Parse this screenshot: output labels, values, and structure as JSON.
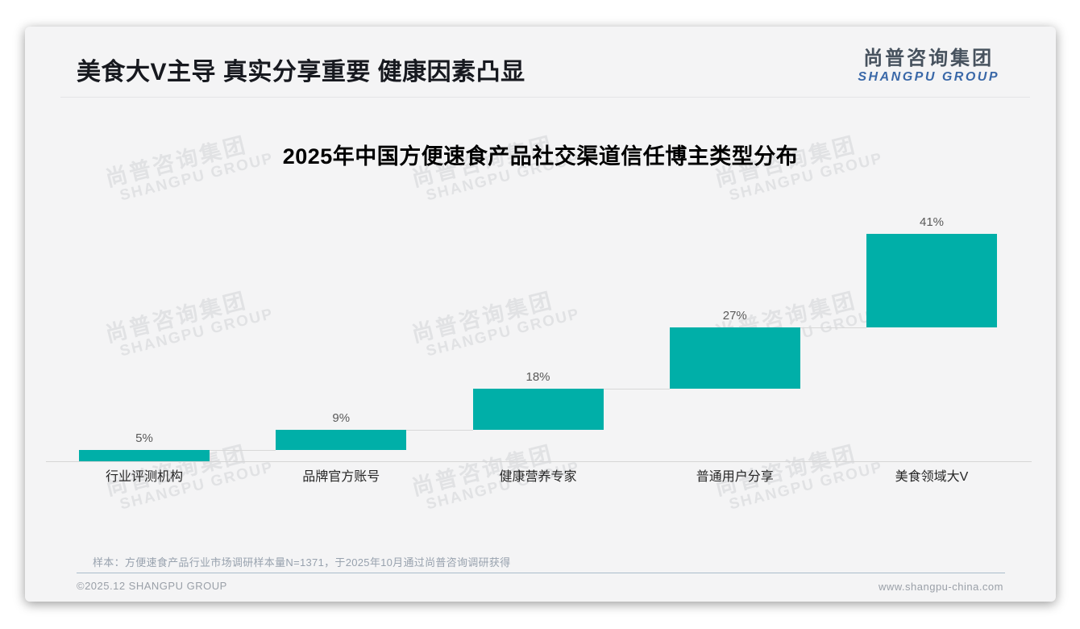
{
  "header": {
    "title": "美食大V主导 真实分享重要 健康因素凸显",
    "logo": {
      "zh": "尚普咨询集团",
      "en": "SHANGPU GROUP"
    }
  },
  "chart_data": {
    "type": "bar",
    "variant": "waterfall-staircase",
    "title": "2025年中国方便速食产品社交渠道信任博主类型分布",
    "categories": [
      "行业评测机构",
      "品牌官方账号",
      "健康营养专家",
      "普通用户分享",
      "美食领域大V"
    ],
    "values": [
      5,
      9,
      18,
      27,
      41
    ],
    "data_labels": [
      "5%",
      "9%",
      "18%",
      "27%",
      "41%"
    ],
    "unit": "%",
    "ylim": [
      0,
      100
    ],
    "grid": false,
    "legend": false,
    "bar_color": "#00AFA8",
    "connector_color": "#d8d8d8",
    "axis_line_color": "#d5d5d5",
    "value_label_color": "#595959",
    "category_label_color": "#262626"
  },
  "footnote": "样本：方便速食产品行业市场调研样本量N=1371，于2025年10月通过尚普咨询调研获得",
  "footer": {
    "left": "©2025.12 SHANGPU GROUP",
    "right": "www.shangpu-china.com"
  },
  "watermark": {
    "zh": "尚普咨询集团",
    "en": "SHANGPU GROUP"
  }
}
